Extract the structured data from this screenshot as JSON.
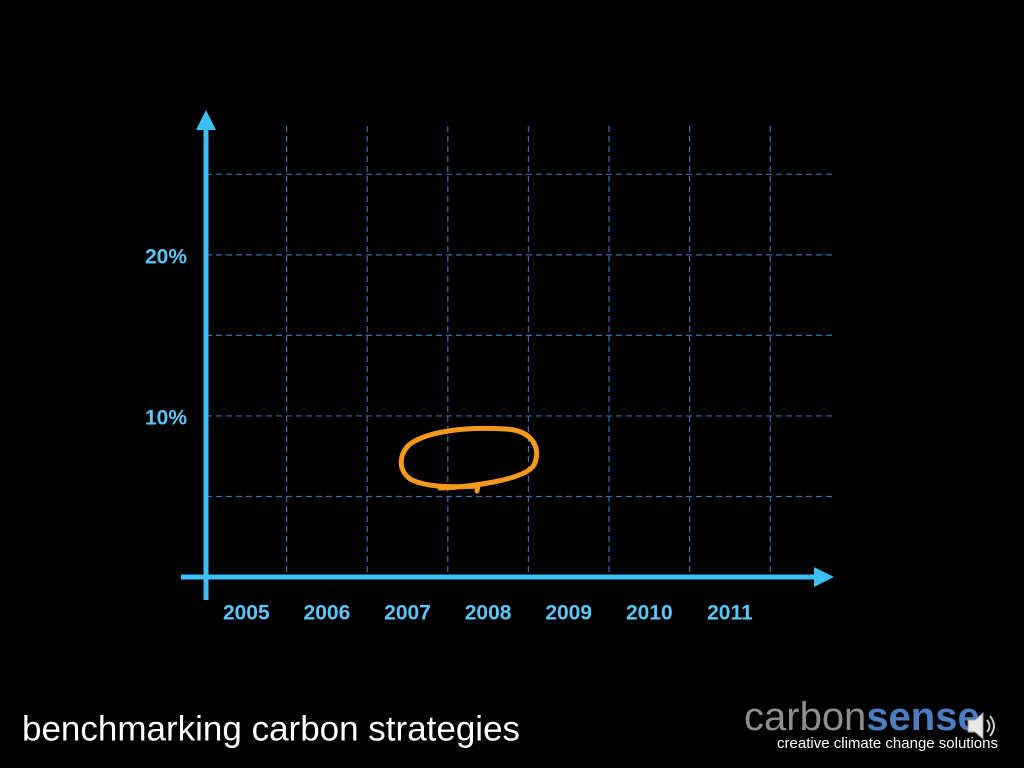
{
  "chart_data": {
    "type": "axes",
    "categories": [
      "2005",
      "2006",
      "2007",
      "2008",
      "2009",
      "2010",
      "2011"
    ],
    "ylim": [
      0,
      28
    ],
    "yticks": [
      {
        "value": 10,
        "label": "10%"
      },
      {
        "value": 20,
        "label": "20%"
      }
    ],
    "ygrid": [
      5,
      10,
      15,
      20,
      25
    ],
    "grid": true,
    "color": "#3cbff5"
  },
  "footer": {
    "title": "benchmarking carbon strategies",
    "logo_left": "carbon",
    "logo_right": "sense",
    "tagline": "creative climate change solutions"
  }
}
